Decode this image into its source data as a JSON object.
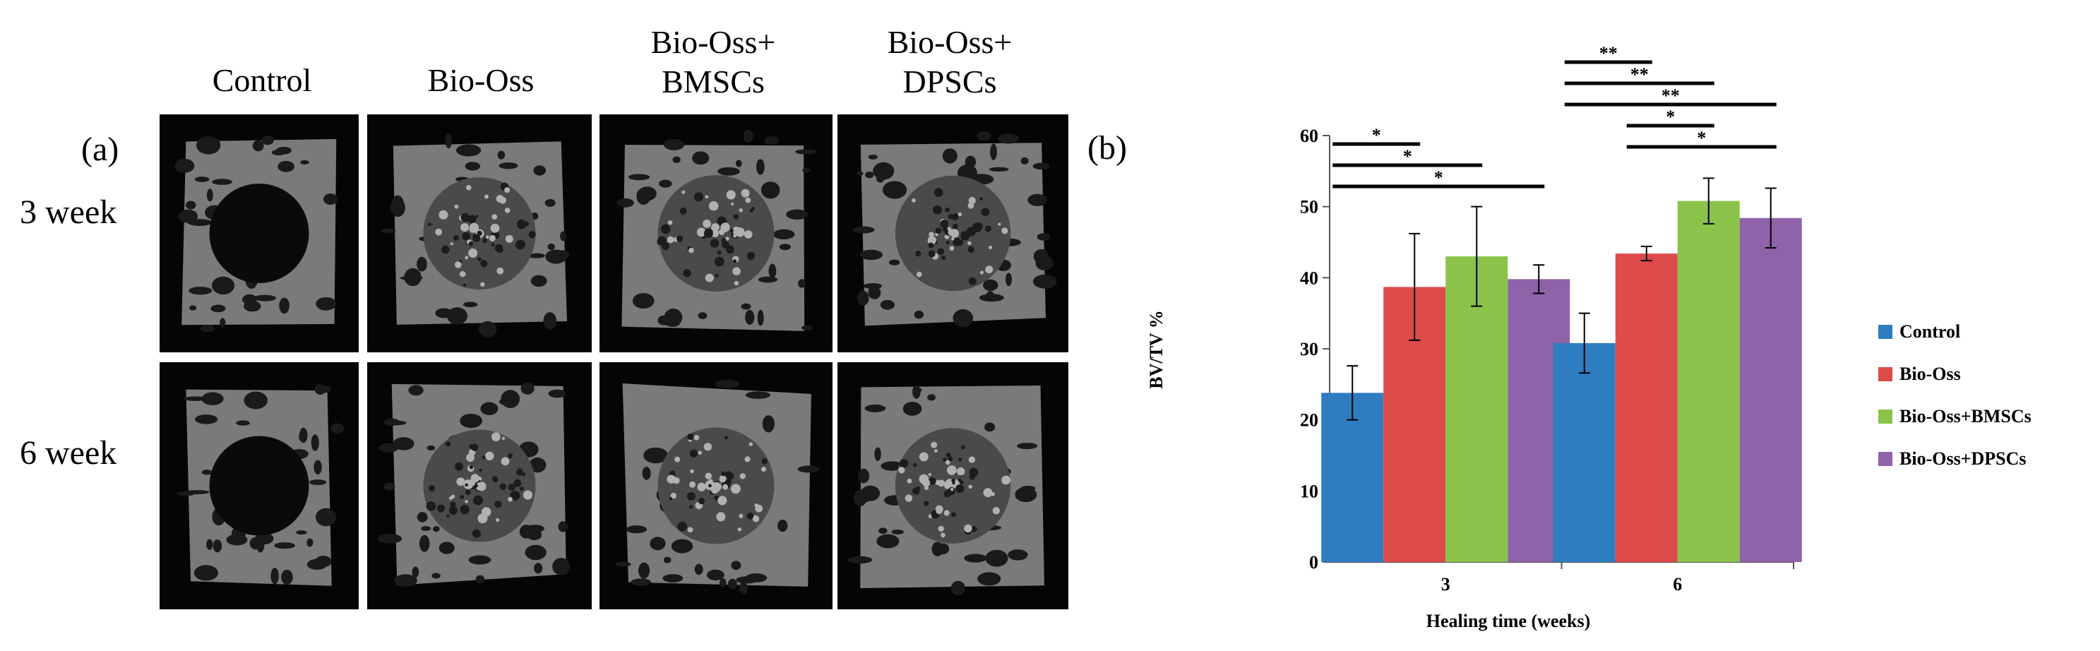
{
  "panel_a": {
    "letter": "(a)",
    "columns": [
      "Control",
      "Bio-Oss",
      "Bio-Oss+\nBMSCs",
      "Bio-Oss+\nDPSCs"
    ],
    "rows": [
      "3 week",
      "6 week"
    ]
  },
  "chart_data": {
    "type": "bar",
    "panel_letter": "(b)",
    "categories": [
      "3",
      "6"
    ],
    "series": [
      {
        "name": "Control",
        "color": "#2E7DC0",
        "values": [
          23.8,
          30.8
        ],
        "errors": [
          3.8,
          4.2
        ]
      },
      {
        "name": "Bio-Oss",
        "color": "#DD4A4A",
        "values": [
          38.7,
          43.4
        ],
        "errors": [
          7.5,
          1.0
        ]
      },
      {
        "name": "Bio-Oss+BMSCs",
        "color": "#8BC34A",
        "values": [
          43.0,
          50.8
        ],
        "errors": [
          7.0,
          3.2
        ]
      },
      {
        "name": "Bio-Oss+DPSCs",
        "color": "#8E63A9",
        "values": [
          39.8,
          48.4
        ],
        "errors": [
          2.0,
          4.2
        ]
      }
    ],
    "xlabel": "Healing time (weeks)",
    "ylabel": "BV/TV %",
    "ylim": [
      0,
      60
    ],
    "yticks": [
      0,
      10,
      20,
      30,
      40,
      50,
      60
    ],
    "grid": false,
    "legend_position": "right",
    "significance": [
      {
        "group": "3",
        "from": "Control",
        "to": "Bio-Oss",
        "label": "*"
      },
      {
        "group": "3",
        "from": "Control",
        "to": "Bio-Oss+BMSCs",
        "label": "*"
      },
      {
        "group": "3",
        "from": "Control",
        "to": "Bio-Oss+DPSCs",
        "label": "*"
      },
      {
        "group": "6",
        "from": "Control",
        "to": "Bio-Oss",
        "label": "**"
      },
      {
        "group": "6",
        "from": "Control",
        "to": "Bio-Oss+BMSCs",
        "label": "**"
      },
      {
        "group": "6",
        "from": "Control",
        "to": "Bio-Oss+DPSCs",
        "label": "**"
      },
      {
        "group": "6",
        "from": "Bio-Oss",
        "to": "Bio-Oss+BMSCs",
        "label": "*"
      },
      {
        "group": "6",
        "from": "Bio-Oss",
        "to": "Bio-Oss+DPSCs",
        "label": "*"
      }
    ]
  }
}
